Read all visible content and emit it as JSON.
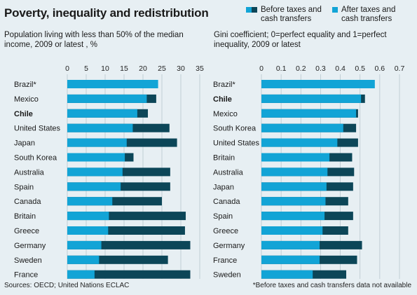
{
  "title": "Poverty, inequality and redistribution",
  "legend": {
    "before": "Before taxes and\ncash transfers",
    "after": "After taxes and\ncash transfers",
    "color_after": "#12a4d6",
    "color_before": "#0c4658"
  },
  "footer": {
    "sources": "Sources: OECD; United Nations ECLAC",
    "note": "*Before taxes and cash transfers data not available"
  },
  "chart_data": [
    {
      "type": "bar",
      "orientation": "horizontal",
      "title": "Population living with less than 50% of the median income, 2009 or latest , %",
      "xlim": [
        0,
        35
      ],
      "ticks": [
        0,
        5,
        10,
        15,
        20,
        25,
        30,
        35
      ],
      "grid": true,
      "categories": [
        "Brazil*",
        "Mexico",
        "Chile",
        "United States",
        "Japan",
        "South Korea",
        "Australia",
        "Spain",
        "Canada",
        "Britain",
        "Greece",
        "Germany",
        "Sweden",
        "France"
      ],
      "highlight": "Chile",
      "series": [
        {
          "name": "After taxes and cash transfers",
          "values": [
            24,
            21,
            18.5,
            17.3,
            15.7,
            15.2,
            14.6,
            14.1,
            11.9,
            11,
            10.8,
            9,
            8.4,
            7.2
          ]
        },
        {
          "name": "Before taxes and cash transfers",
          "values": [
            null,
            23.5,
            21.3,
            27,
            29,
            17.5,
            27.2,
            27.2,
            25,
            31.3,
            31.1,
            32.5,
            26.6,
            32.5
          ]
        }
      ]
    },
    {
      "type": "bar",
      "orientation": "horizontal",
      "title": "Gini coefficient; 0=perfect equality and 1=perfect inequality, 2009 or latest",
      "xlim": [
        0,
        0.7
      ],
      "ticks": [
        0,
        0.1,
        0.2,
        0.3,
        0.4,
        0.5,
        0.6,
        0.7
      ],
      "grid": true,
      "categories": [
        "Brazil*",
        "Chile",
        "Mexico",
        "South Korea",
        "United States",
        "Britain",
        "Australia",
        "Japan",
        "Canada",
        "Spain",
        "Greece",
        "Germany",
        "France",
        "Sweden"
      ],
      "highlight": "Chile",
      "series": [
        {
          "name": "After taxes and cash transfers",
          "values": [
            0.575,
            0.505,
            0.48,
            0.415,
            0.385,
            0.345,
            0.335,
            0.33,
            0.325,
            0.32,
            0.31,
            0.295,
            0.295,
            0.26
          ]
        },
        {
          "name": "Before taxes and cash transfers",
          "values": [
            null,
            0.525,
            0.49,
            0.48,
            0.49,
            0.46,
            0.47,
            0.465,
            0.44,
            0.465,
            0.44,
            0.51,
            0.485,
            0.43
          ]
        }
      ]
    }
  ]
}
